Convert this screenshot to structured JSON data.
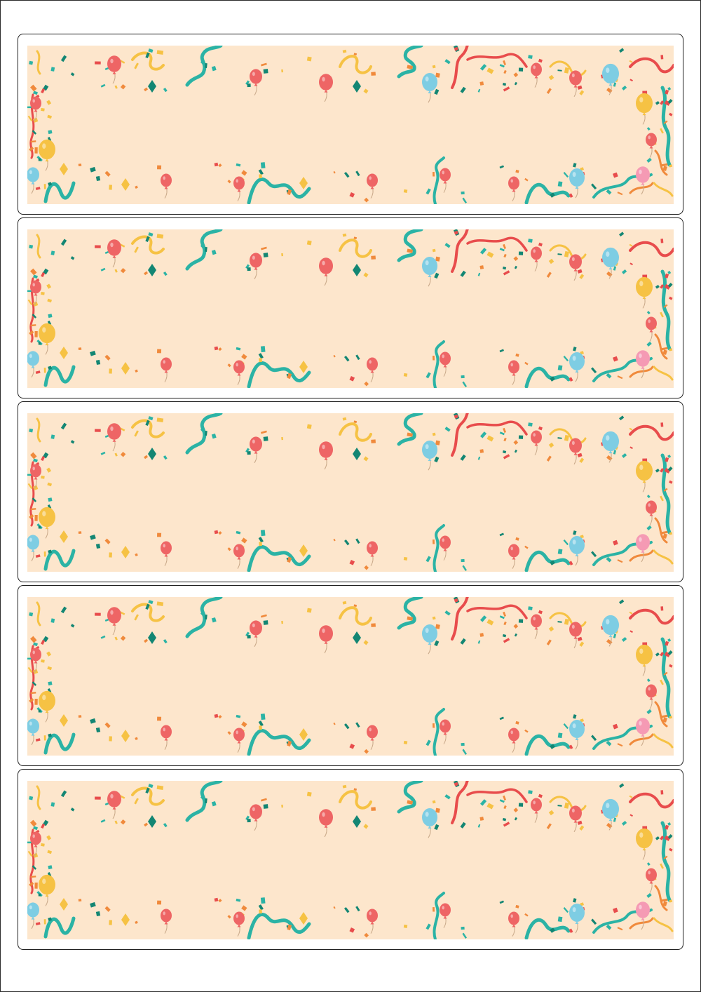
{
  "sheet": {
    "label_count": 5,
    "colors": {
      "background": "#fde6cc",
      "red": "#e84c4c",
      "coral": "#ee6565",
      "teal": "#2bb3a5",
      "dark_teal": "#138673",
      "yellow": "#f6c244",
      "orange": "#f08a3c",
      "sky_blue": "#7ecde3",
      "pink": "#f59ab4"
    },
    "decorations": [
      "balloon-icon",
      "ribbon-icon",
      "confetti-icon"
    ]
  }
}
